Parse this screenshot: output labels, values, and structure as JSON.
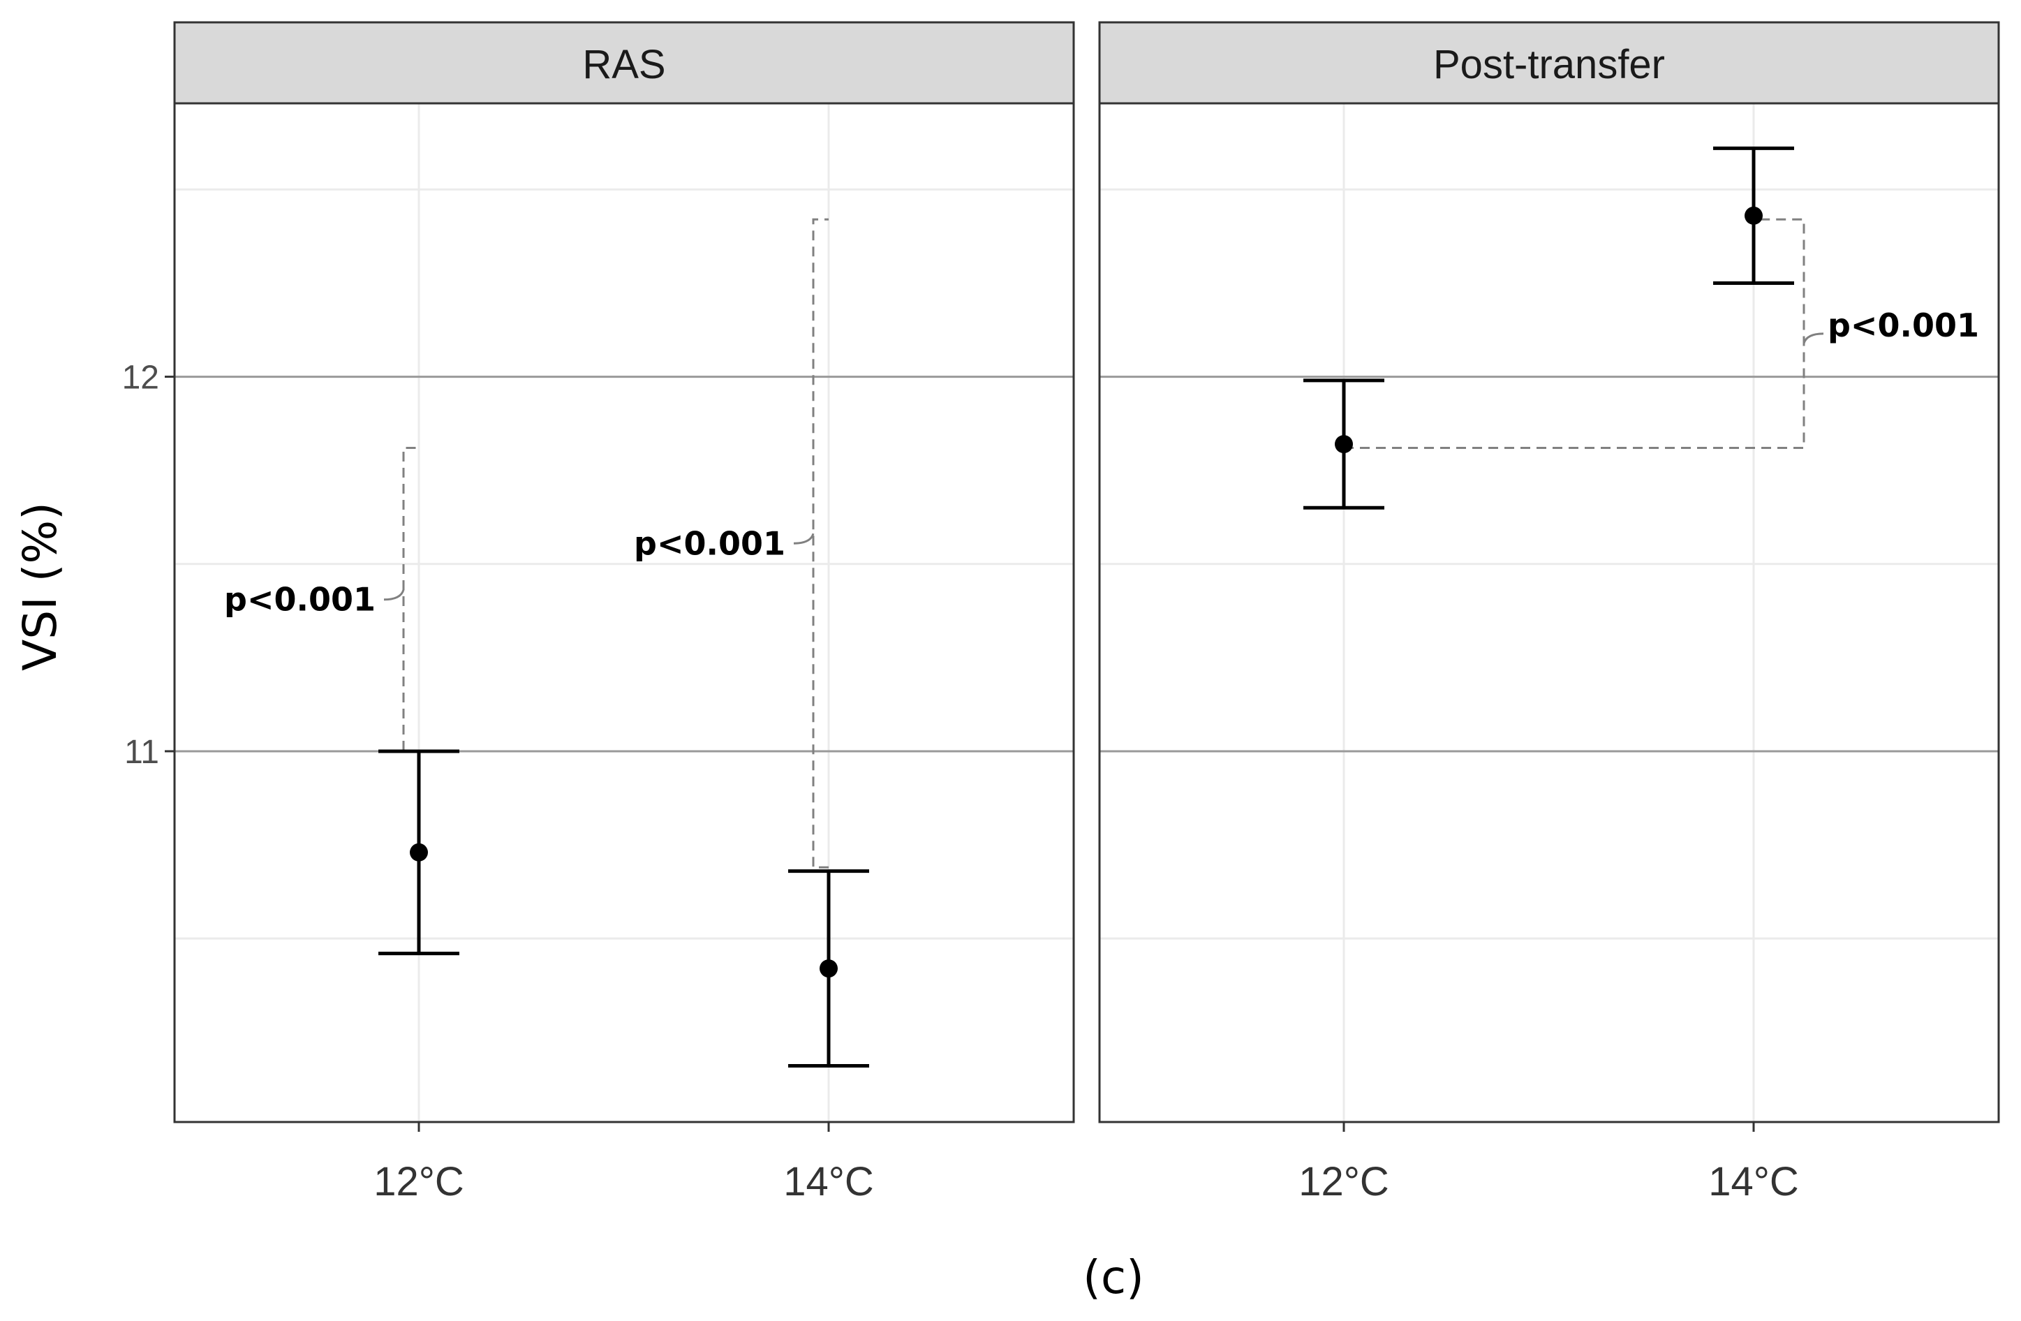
{
  "chart_data": {
    "type": "scatter",
    "ylabel": "VSI (%)",
    "caption": "(c)",
    "ylim": [
      10.01,
      12.73
    ],
    "y_ticks": [
      11,
      12
    ],
    "grid": true,
    "colors": {
      "points": "#000000",
      "strip": "#d9d9d9",
      "panel_border": "#333333",
      "bracket": "#808080"
    },
    "panels": [
      {
        "name": "RAS",
        "categories": [
          "12°C",
          "14°C"
        ],
        "points": [
          {
            "x": "12°C",
            "y": 10.73,
            "lower": 10.46,
            "upper": 11.0
          },
          {
            "x": "14°C",
            "y": 10.42,
            "lower": 10.16,
            "upper": 10.68
          }
        ],
        "comparisons": [
          {
            "label": "p<0.001",
            "x": "12°C",
            "from": 11.0,
            "to": 11.81
          },
          {
            "label": "p<0.001",
            "x": "14°C",
            "from": 10.69,
            "to": 12.42
          }
        ]
      },
      {
        "name": "Post-transfer",
        "categories": [
          "12°C",
          "14°C"
        ],
        "points": [
          {
            "x": "12°C",
            "y": 11.82,
            "lower": 11.65,
            "upper": 11.99
          },
          {
            "x": "14°C",
            "y": 12.43,
            "lower": 12.25,
            "upper": 12.61
          }
        ],
        "comparisons": [
          {
            "label": "p<0.001",
            "from_x": "12°C",
            "to_x": "14°C",
            "from": 11.81,
            "to": 12.42
          }
        ]
      }
    ]
  }
}
